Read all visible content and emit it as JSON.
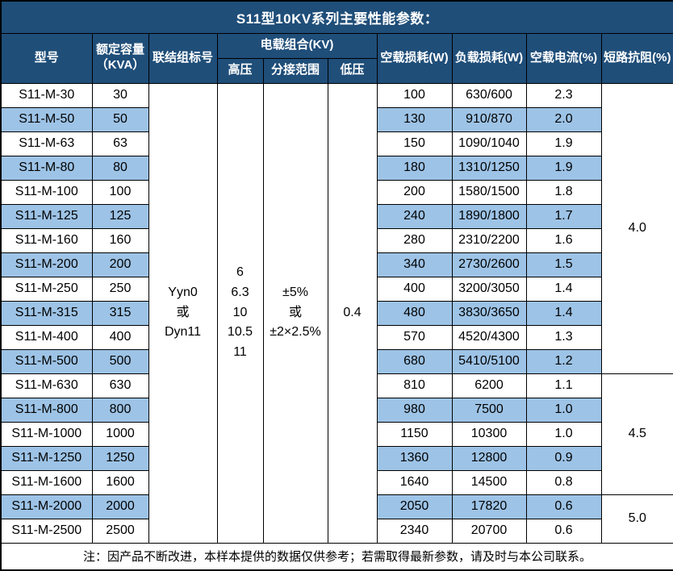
{
  "title": "S11型10KV系列主要性能参数：",
  "note": "注：因产品不断改进，本样本提供的数据仅供参考；若需取得最新参数，请及时与本公司联系。",
  "colors": {
    "header_bg": "#1F4E79",
    "header_text": "#FFFFFF",
    "stripe_bg": "#9DC3E6",
    "row_bg": "#FFFFFF",
    "border": "#000000",
    "body_text": "#000000"
  },
  "table": {
    "headers": {
      "model": "型号",
      "capacity_line1": "额定容量",
      "capacity_line2": "（KVA）",
      "vector_group": "联结组标号",
      "voltage_combo": "电载组合(KV)",
      "hv": "高压",
      "tap_range": "分接范围",
      "lv": "低压",
      "no_load_loss": "空载损耗(W)",
      "load_loss": "负载损耗(W)",
      "no_load_current": "空载电流(%)",
      "impedance": "短路抗阻(%)"
    },
    "merged": {
      "vector_group_lines": [
        "Yyn0",
        "或",
        "Dyn11"
      ],
      "hv_lines": [
        "6",
        "6.3",
        "10",
        "10.5",
        "11"
      ],
      "tap_range_lines": [
        "±5%",
        "或",
        "±2×2.5%"
      ],
      "lv_value": "0.4"
    },
    "impedance_groups": [
      {
        "value": "4.0",
        "row_span": 12
      },
      {
        "value": "4.5",
        "row_span": 5
      },
      {
        "value": "5.0",
        "row_span": 2
      }
    ],
    "rows": [
      {
        "model": "S11-M-30",
        "capacity": "30",
        "no_load_loss": "100",
        "load_loss": "630/600",
        "no_load_current": "2.3"
      },
      {
        "model": "S11-M-50",
        "capacity": "50",
        "no_load_loss": "130",
        "load_loss": "910/870",
        "no_load_current": "2.0"
      },
      {
        "model": "S11-M-63",
        "capacity": "63",
        "no_load_loss": "150",
        "load_loss": "1090/1040",
        "no_load_current": "1.9"
      },
      {
        "model": "S11-M-80",
        "capacity": "80",
        "no_load_loss": "180",
        "load_loss": "1310/1250",
        "no_load_current": "1.9"
      },
      {
        "model": "S11-M-100",
        "capacity": "100",
        "no_load_loss": "200",
        "load_loss": "1580/1500",
        "no_load_current": "1.8"
      },
      {
        "model": "S11-M-125",
        "capacity": "125",
        "no_load_loss": "240",
        "load_loss": "1890/1800",
        "no_load_current": "1.7"
      },
      {
        "model": "S11-M-160",
        "capacity": "160",
        "no_load_loss": "280",
        "load_loss": "2310/2200",
        "no_load_current": "1.6"
      },
      {
        "model": "S11-M-200",
        "capacity": "200",
        "no_load_loss": "340",
        "load_loss": "2730/2600",
        "no_load_current": "1.5"
      },
      {
        "model": "S11-M-250",
        "capacity": "250",
        "no_load_loss": "400",
        "load_loss": "3200/3050",
        "no_load_current": "1.4"
      },
      {
        "model": "S11-M-315",
        "capacity": "315",
        "no_load_loss": "480",
        "load_loss": "3830/3650",
        "no_load_current": "1.4"
      },
      {
        "model": "S11-M-400",
        "capacity": "400",
        "no_load_loss": "570",
        "load_loss": "4520/4300",
        "no_load_current": "1.3"
      },
      {
        "model": "S11-M-500",
        "capacity": "500",
        "no_load_loss": "680",
        "load_loss": "5410/5100",
        "no_load_current": "1.2"
      },
      {
        "model": "S11-M-630",
        "capacity": "630",
        "no_load_loss": "810",
        "load_loss": "6200",
        "no_load_current": "1.1"
      },
      {
        "model": "S11-M-800",
        "capacity": "800",
        "no_load_loss": "980",
        "load_loss": "7500",
        "no_load_current": "1.0"
      },
      {
        "model": "S11-M-1000",
        "capacity": "1000",
        "no_load_loss": "1150",
        "load_loss": "10300",
        "no_load_current": "1.0"
      },
      {
        "model": "S11-M-1250",
        "capacity": "1250",
        "no_load_loss": "1360",
        "load_loss": "12800",
        "no_load_current": "0.9"
      },
      {
        "model": "S11-M-1600",
        "capacity": "1600",
        "no_load_loss": "1640",
        "load_loss": "14500",
        "no_load_current": "0.8"
      },
      {
        "model": "S11-M-2000",
        "capacity": "2000",
        "no_load_loss": "2050",
        "load_loss": "17820",
        "no_load_current": "0.6"
      },
      {
        "model": "S11-M-2500",
        "capacity": "2500",
        "no_load_loss": "2340",
        "load_loss": "20700",
        "no_load_current": "0.6"
      }
    ]
  }
}
